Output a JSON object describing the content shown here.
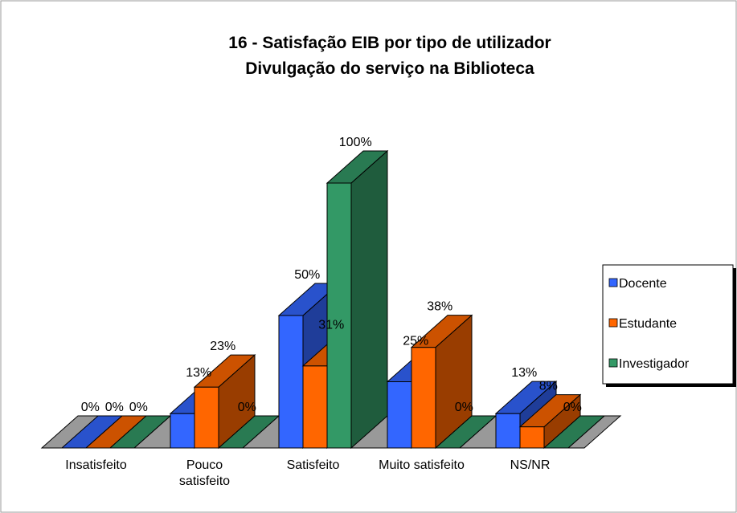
{
  "chart_data": {
    "type": "bar3d",
    "title": "16 - Satisfação EIB por tipo de utilizador",
    "subtitle": "Divulgação do serviço na Biblioteca",
    "categories": [
      "Insatisfeito",
      "Pouco satisfeito",
      "Satisfeito",
      "Muito satisfeito",
      "NS/NR"
    ],
    "series": [
      {
        "name": "Docente",
        "color": "#3366ff",
        "values": [
          0,
          13,
          50,
          25,
          13
        ],
        "value_labels": [
          "0%",
          "13%",
          "50%",
          "25%",
          "13%"
        ]
      },
      {
        "name": "Estudante",
        "color": "#ff6600",
        "values": [
          0,
          23,
          31,
          38,
          8
        ],
        "value_labels": [
          "0%",
          "23%",
          "31%",
          "38%",
          "8%"
        ]
      },
      {
        "name": "Investigador",
        "color": "#339966",
        "values": [
          0,
          0,
          100,
          0,
          0
        ],
        "value_labels": [
          "0%",
          "0%",
          "100%",
          "0%",
          "0%"
        ]
      }
    ],
    "ylim": [
      0,
      100
    ],
    "legend": "right"
  }
}
